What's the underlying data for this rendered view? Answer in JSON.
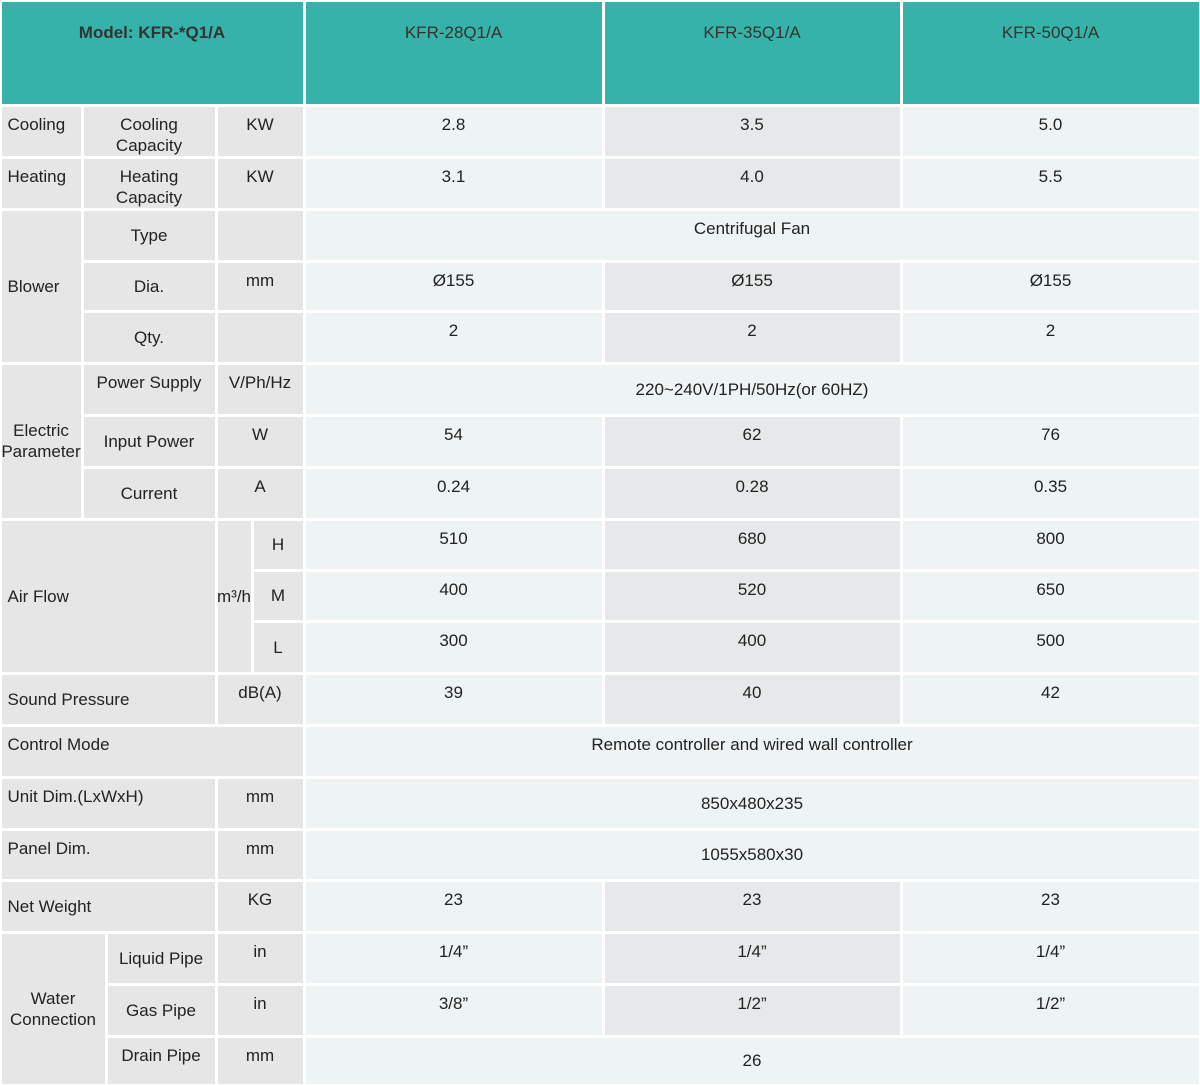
{
  "header": {
    "model": "Model: KFR-*Q1/A",
    "models": [
      "KFR-28Q1/A",
      "KFR-35Q1/A",
      "KFR-50Q1/A"
    ]
  },
  "cooling": {
    "group": "Cooling",
    "item": "Cooling Capacity",
    "unit": "KW",
    "values": [
      "2.8",
      "3.5",
      "5.0"
    ]
  },
  "heating": {
    "group": "Heating",
    "item": "Heating Capacity",
    "unit": "KW",
    "values": [
      "3.1",
      "4.0",
      "5.5"
    ]
  },
  "blower": {
    "group": "Blower",
    "type": {
      "item": "Type",
      "value": "Centrifugal Fan"
    },
    "dia": {
      "item": "Dia.",
      "unit": "mm",
      "values": [
        "Ø155",
        "Ø155",
        "Ø155"
      ]
    },
    "qty": {
      "item": "Qty.",
      "values": [
        "2",
        "2",
        "2"
      ]
    }
  },
  "electric": {
    "group": [
      "Electric",
      "Parameter"
    ],
    "power_supply": {
      "item": "Power Supply",
      "unit": "V/Ph/Hz",
      "value": "220~240V/1PH/50Hz(or 60HZ)"
    },
    "input_power": {
      "item": "Input Power",
      "unit": "W",
      "values": [
        "54",
        "62",
        "76"
      ]
    },
    "current": {
      "item": "Current",
      "unit": "A",
      "values": [
        "0.24",
        "0.28",
        "0.35"
      ]
    }
  },
  "air_flow": {
    "group": "Air Flow",
    "unit": "m³/h",
    "levels": [
      {
        "level": "H",
        "values": [
          "510",
          "680",
          "800"
        ]
      },
      {
        "level": "M",
        "values": [
          "400",
          "520",
          "650"
        ]
      },
      {
        "level": "L",
        "values": [
          "300",
          "400",
          "500"
        ]
      }
    ]
  },
  "sound_pressure": {
    "label": "Sound Pressure",
    "unit": "dB(A)",
    "values": [
      "39",
      "40",
      "42"
    ]
  },
  "control_mode": {
    "label": "Control Mode",
    "value": "Remote controller and wired wall controller"
  },
  "unit_dim": {
    "label": "Unit Dim.(LxWxH)",
    "unit": "mm",
    "value": "850x480x235"
  },
  "panel_dim": {
    "label": "Panel Dim.",
    "unit": "mm",
    "value": "1055x580x30"
  },
  "net_weight": {
    "label": "Net Weight",
    "unit": "KG",
    "values": [
      "23",
      "23",
      "23"
    ]
  },
  "water_connection": {
    "group": [
      "Water",
      "Connection"
    ],
    "liquid_pipe": {
      "item": "Liquid Pipe",
      "unit": "in",
      "values": [
        "1/4”",
        "1/4”",
        "1/4”"
      ]
    },
    "gas_pipe": {
      "item": "Gas Pipe",
      "unit": "in",
      "values": [
        "3/8”",
        "1/2”",
        "1/2”"
      ]
    },
    "drain_pipe": {
      "item": "Drain Pipe",
      "unit": "mm",
      "value": "26"
    }
  }
}
